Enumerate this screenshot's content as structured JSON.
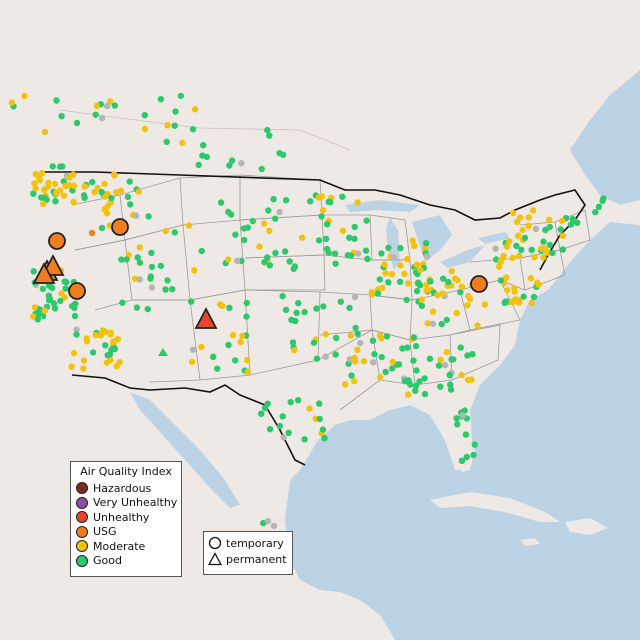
{
  "map": {
    "land_color": "#efe9e6",
    "water_color": "#bcd3e6",
    "border_color": "#111111",
    "state_line_color": "#9a9a9a"
  },
  "legend_aqi": {
    "title": "Air Quality Index",
    "items": [
      {
        "label": "Hazardous",
        "color": "#7e2a1d"
      },
      {
        "label": "Very Unhealthy",
        "color": "#8b4dab"
      },
      {
        "label": "Unhealthy",
        "color": "#e8452f"
      },
      {
        "label": "USG",
        "color": "#ee7e1f"
      },
      {
        "label": "Moderate",
        "color": "#f2c20f"
      },
      {
        "label": "Good",
        "color": "#2dc76c"
      }
    ]
  },
  "legend_type": {
    "items": [
      {
        "label": "temporary",
        "icon": "circle-icon"
      },
      {
        "label": "permanent",
        "icon": "triangle-icon"
      }
    ]
  }
}
